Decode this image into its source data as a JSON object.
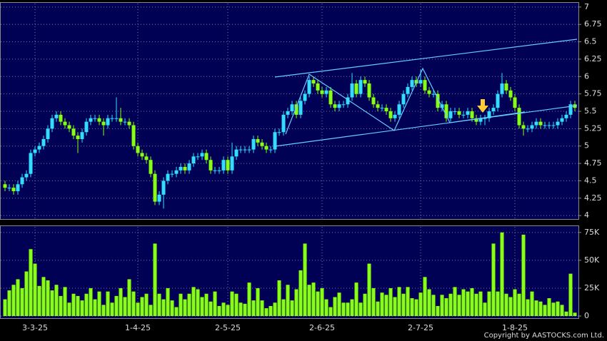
{
  "chart_data": [
    {
      "type": "candlestick",
      "categories": [
        null,
        null,
        null,
        null,
        null,
        null,
        null,
        "3-3-25",
        null,
        null,
        null,
        null,
        null,
        null,
        null,
        null,
        null,
        null,
        null,
        null,
        null,
        null,
        null,
        null,
        null,
        null,
        null,
        null,
        null,
        null,
        null,
        "1-4-25",
        null,
        null,
        null,
        null,
        null,
        null,
        null,
        null,
        null,
        null,
        null,
        null,
        null,
        null,
        null,
        null,
        null,
        null,
        null,
        null,
        "2-5-25",
        null,
        null,
        null,
        null,
        null,
        null,
        null,
        null,
        null,
        null,
        null,
        null,
        null,
        null,
        null,
        null,
        null,
        null,
        null,
        null,
        null,
        "2-6-25",
        null,
        null,
        null,
        null,
        null,
        null,
        null,
        null,
        null,
        null,
        null,
        null,
        null,
        null,
        null,
        null,
        null,
        null,
        null,
        null,
        null,
        null,
        "2-7-25",
        null,
        null,
        null,
        null,
        null,
        null,
        null,
        null,
        null,
        null,
        null,
        null,
        null,
        null,
        null,
        null,
        null,
        null,
        null,
        null,
        null,
        "1-8-25",
        null,
        null,
        null,
        null,
        null,
        null,
        null,
        null,
        null,
        null,
        null,
        null,
        null,
        null
      ],
      "open": [
        4.45,
        4.4,
        4.4,
        4.35,
        4.45,
        4.55,
        4.6,
        4.9,
        4.95,
        5.0,
        5.1,
        5.25,
        5.4,
        5.45,
        5.35,
        5.3,
        5.25,
        5.15,
        5.1,
        5.2,
        5.35,
        5.4,
        5.4,
        5.35,
        5.3,
        5.4,
        5.4,
        5.4,
        5.35,
        5.35,
        5.3,
        5.0,
        4.9,
        4.85,
        4.8,
        4.6,
        4.2,
        4.3,
        4.5,
        4.6,
        4.6,
        4.65,
        4.7,
        4.65,
        4.75,
        4.85,
        4.85,
        4.9,
        4.8,
        4.65,
        4.65,
        4.65,
        4.8,
        4.65,
        4.85,
        4.95,
        4.95,
        4.95,
        4.95,
        5.1,
        5.05,
        5.0,
        4.95,
        4.95,
        5.2,
        5.2,
        5.45,
        5.5,
        5.6,
        5.45,
        5.65,
        5.75,
        5.95,
        5.9,
        5.8,
        5.75,
        5.8,
        5.6,
        5.55,
        5.6,
        5.6,
        5.7,
        5.9,
        5.75,
        5.95,
        5.9,
        5.7,
        5.6,
        5.55,
        5.55,
        5.5,
        5.4,
        5.45,
        5.6,
        5.75,
        5.85,
        5.95,
        5.9,
        5.95,
        5.8,
        5.75,
        5.75,
        5.55,
        5.6,
        5.4,
        5.5,
        5.5,
        5.45,
        5.45,
        5.5,
        5.4,
        5.35,
        5.4,
        5.4,
        5.5,
        5.55,
        5.75,
        5.9,
        5.8,
        5.7,
        5.55,
        5.3,
        5.25,
        5.25,
        5.3,
        5.35,
        5.3,
        5.3,
        5.3,
        5.3,
        5.35,
        5.4,
        5.45,
        5.6
      ],
      "high": [
        4.5,
        4.45,
        4.45,
        4.5,
        4.6,
        4.65,
        4.95,
        5.0,
        5.05,
        5.15,
        5.3,
        5.45,
        5.5,
        5.5,
        5.4,
        5.35,
        5.3,
        5.2,
        5.25,
        5.4,
        5.45,
        5.45,
        5.45,
        5.4,
        5.45,
        5.45,
        5.7,
        5.55,
        5.4,
        5.4,
        5.35,
        5.05,
        4.95,
        4.9,
        4.85,
        4.65,
        4.35,
        4.55,
        4.65,
        4.65,
        4.7,
        4.75,
        4.75,
        4.8,
        4.9,
        4.9,
        4.95,
        4.95,
        4.85,
        4.7,
        4.7,
        4.85,
        4.85,
        5.05,
        5.0,
        5.0,
        5.0,
        5.0,
        5.15,
        5.15,
        5.1,
        5.05,
        5.0,
        5.25,
        5.25,
        5.5,
        5.55,
        5.65,
        5.65,
        5.7,
        5.8,
        6.0,
        6.0,
        5.95,
        5.85,
        5.85,
        5.85,
        5.65,
        5.65,
        5.65,
        5.75,
        6.05,
        5.95,
        6.0,
        6.0,
        5.95,
        5.75,
        5.65,
        5.6,
        5.6,
        5.55,
        5.5,
        5.65,
        5.8,
        5.9,
        6.0,
        6.0,
        6.1,
        6.0,
        5.85,
        5.8,
        5.8,
        5.65,
        5.65,
        5.55,
        5.55,
        5.55,
        5.5,
        5.55,
        5.55,
        5.45,
        5.45,
        5.45,
        5.55,
        5.6,
        5.8,
        6.05,
        5.95,
        5.85,
        5.75,
        5.6,
        5.35,
        5.3,
        5.35,
        5.4,
        5.4,
        5.35,
        5.35,
        5.35,
        5.4,
        5.45,
        5.5,
        5.65,
        5.65
      ],
      "low": [
        4.35,
        4.35,
        4.3,
        4.3,
        4.4,
        4.5,
        4.55,
        4.85,
        4.9,
        4.95,
        5.05,
        5.2,
        5.35,
        5.3,
        5.25,
        5.2,
        5.1,
        4.9,
        5.05,
        5.15,
        5.3,
        5.35,
        5.3,
        5.15,
        5.25,
        5.35,
        5.35,
        5.3,
        5.3,
        5.25,
        4.95,
        4.85,
        4.8,
        4.75,
        4.55,
        4.15,
        4.15,
        4.1,
        4.45,
        4.55,
        4.55,
        4.6,
        4.6,
        4.6,
        4.7,
        4.8,
        4.8,
        4.75,
        4.6,
        4.6,
        4.6,
        4.6,
        4.6,
        4.6,
        4.8,
        4.9,
        4.9,
        4.9,
        4.9,
        5.0,
        4.95,
        4.9,
        4.9,
        4.9,
        5.15,
        5.15,
        5.4,
        5.45,
        5.4,
        5.4,
        5.6,
        5.7,
        5.85,
        5.75,
        5.7,
        5.7,
        5.55,
        5.5,
        5.5,
        5.55,
        5.55,
        5.65,
        5.7,
        5.7,
        5.85,
        5.65,
        5.55,
        5.5,
        5.5,
        5.45,
        5.35,
        5.35,
        5.4,
        5.55,
        5.7,
        5.8,
        5.85,
        5.85,
        5.75,
        5.7,
        5.7,
        5.5,
        5.5,
        5.35,
        5.35,
        5.45,
        5.4,
        5.4,
        5.4,
        5.35,
        5.3,
        5.3,
        5.3,
        5.35,
        5.45,
        5.5,
        5.7,
        5.75,
        5.65,
        5.5,
        5.25,
        5.15,
        5.2,
        5.2,
        5.25,
        5.25,
        5.25,
        5.25,
        5.25,
        5.25,
        5.3,
        5.35,
        5.4,
        5.5
      ],
      "close": [
        4.4,
        4.4,
        4.35,
        4.45,
        4.55,
        4.6,
        4.9,
        4.95,
        5.0,
        5.1,
        5.25,
        5.4,
        5.45,
        5.35,
        5.3,
        5.25,
        5.15,
        5.1,
        5.2,
        5.35,
        5.4,
        5.4,
        5.35,
        5.3,
        5.4,
        5.4,
        5.4,
        5.35,
        5.35,
        5.3,
        5.0,
        4.9,
        4.85,
        4.8,
        4.6,
        4.2,
        4.3,
        4.5,
        4.6,
        4.6,
        4.65,
        4.7,
        4.65,
        4.75,
        4.85,
        4.85,
        4.9,
        4.8,
        4.65,
        4.65,
        4.65,
        4.8,
        4.65,
        4.85,
        4.95,
        4.95,
        4.95,
        4.95,
        5.1,
        5.05,
        5.0,
        4.95,
        4.95,
        5.2,
        5.2,
        5.45,
        5.5,
        5.6,
        5.45,
        5.65,
        5.75,
        5.95,
        5.9,
        5.8,
        5.75,
        5.8,
        5.6,
        5.55,
        5.6,
        5.6,
        5.7,
        5.9,
        5.75,
        5.95,
        5.9,
        5.7,
        5.6,
        5.55,
        5.55,
        5.5,
        5.4,
        5.45,
        5.6,
        5.75,
        5.85,
        5.95,
        5.9,
        5.95,
        5.8,
        5.75,
        5.75,
        5.55,
        5.6,
        5.4,
        5.5,
        5.5,
        5.45,
        5.45,
        5.5,
        5.4,
        5.35,
        5.4,
        5.4,
        5.5,
        5.55,
        5.75,
        5.9,
        5.8,
        5.7,
        5.55,
        5.3,
        5.25,
        5.25,
        5.3,
        5.35,
        5.3,
        5.3,
        5.3,
        5.3,
        5.35,
        5.4,
        5.45,
        5.6,
        5.55
      ],
      "up_color": "#33ddff",
      "down_color": "#88ff11",
      "ylim": [
        3.95,
        7.05
      ],
      "yticks": [
        4,
        4.25,
        4.5,
        4.75,
        5,
        5.25,
        5.5,
        5.75,
        6,
        6.25,
        6.5,
        6.75,
        7
      ],
      "grid": true
    },
    {
      "type": "bar",
      "values": [
        15000,
        23000,
        28000,
        33000,
        25000,
        40000,
        60000,
        47000,
        27000,
        35000,
        32000,
        23000,
        28000,
        18000,
        26000,
        12000,
        20000,
        18000,
        14000,
        20000,
        25000,
        15000,
        22000,
        10000,
        22000,
        12000,
        18000,
        25000,
        17000,
        33000,
        22000,
        12000,
        17000,
        20000,
        10000,
        65000,
        20000,
        15000,
        25000,
        14000,
        8000,
        20000,
        15000,
        20000,
        26000,
        24000,
        17000,
        20000,
        13000,
        22000,
        9000,
        12000,
        10000,
        22000,
        20000,
        12000,
        11000,
        30000,
        14000,
        25000,
        14000,
        7000,
        9000,
        12000,
        32000,
        15000,
        28000,
        14000,
        24000,
        41000,
        65000,
        28000,
        30000,
        22000,
        25000,
        15000,
        8000,
        17000,
        21000,
        12000,
        12000,
        15000,
        30000,
        12000,
        20000,
        47000,
        25000,
        13000,
        21000,
        19000,
        25000,
        17000,
        26000,
        20000,
        26000,
        16000,
        15000,
        21000,
        35000,
        24000,
        19000,
        9000,
        19000,
        16000,
        20000,
        26000,
        19000,
        24000,
        22000,
        25000,
        20000,
        22000,
        12000,
        22000,
        65000,
        22000,
        75000,
        20000,
        17000,
        24000,
        20000,
        73000,
        15000,
        22000,
        14000,
        13000,
        10000,
        16000,
        12000,
        13000,
        10000,
        4000,
        38000,
        3000
      ],
      "color": "#88ff11",
      "ylim": [
        0,
        80000
      ],
      "yticks": [
        0,
        {
          "value": 25000,
          "label": "25K"
        },
        {
          "value": 50000,
          "label": "50K"
        },
        {
          "value": 75000,
          "label": "75K"
        }
      ],
      "grid": true
    }
  ],
  "copyright": "Copyright by AASTOCKS.com Ltd."
}
